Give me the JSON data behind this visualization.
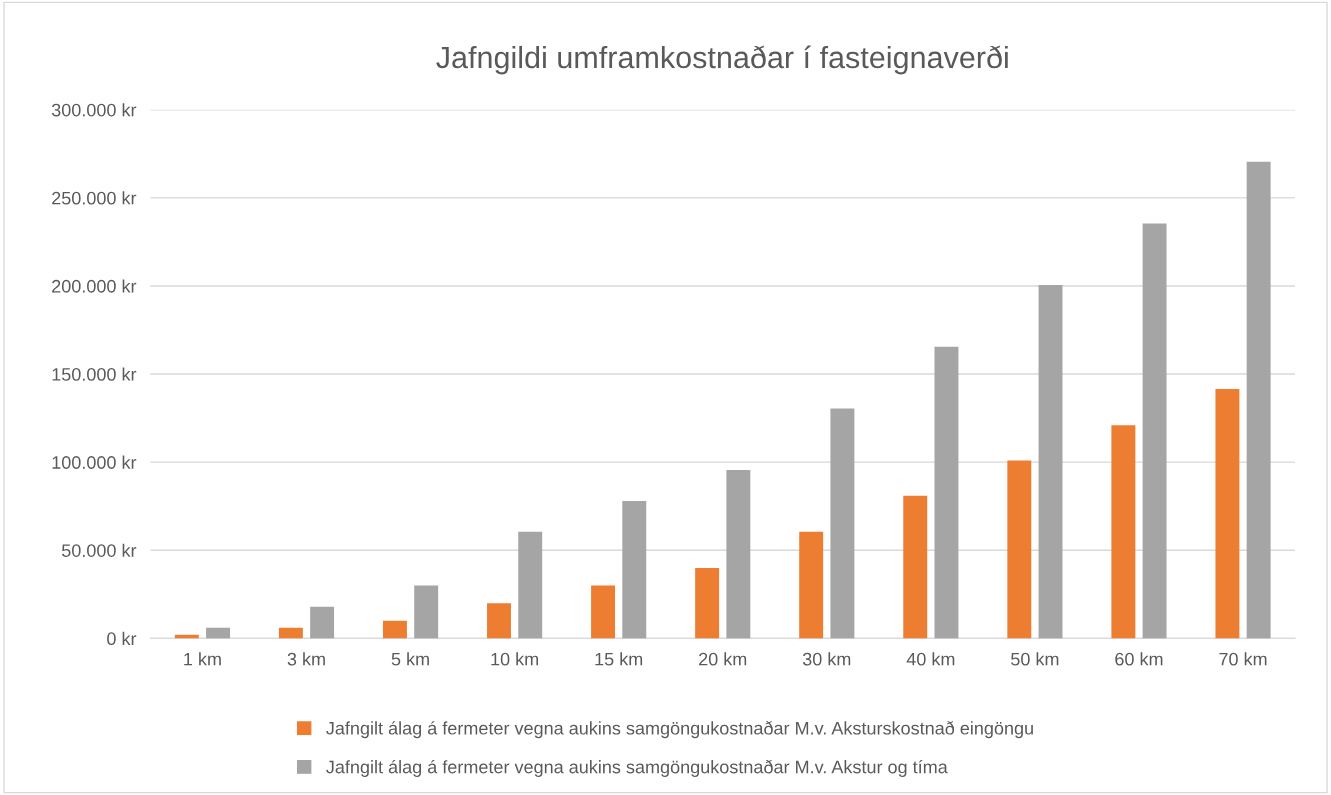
{
  "chart_data": {
    "type": "bar",
    "title": "Jafngildi umframkostnaðar í fasteignaverði",
    "categories": [
      "1 km",
      "3 km",
      "5 km",
      "10 km",
      "15 km",
      "20 km",
      "30 km",
      "40 km",
      "50 km",
      "60 km",
      "70 km"
    ],
    "series": [
      {
        "name": "Jafngilt álag á fermeter vegna aukins samgöngukostnaðar M.v. Aksturskostnað eingöngu",
        "color": "#ed7d31",
        "values": [
          2000,
          6000,
          10000,
          20000,
          30000,
          40000,
          60500,
          81000,
          101000,
          121000,
          141500
        ]
      },
      {
        "name": "Jafngilt álag á fermeter vegna aukins samgöngukostnaðar M.v. Akstur og tíma",
        "color": "#a5a5a5",
        "values": [
          6000,
          18000,
          30000,
          60500,
          78000,
          95500,
          130500,
          165500,
          200500,
          235500,
          270500
        ]
      }
    ],
    "ylim": [
      0,
      300000
    ],
    "yticks": [
      {
        "value": 0,
        "label": "0 kr"
      },
      {
        "value": 50000,
        "label": "50.000 kr"
      },
      {
        "value": 100000,
        "label": "100.000 kr"
      },
      {
        "value": 150000,
        "label": "150.000 kr"
      },
      {
        "value": 200000,
        "label": "200.000 kr"
      },
      {
        "value": 250000,
        "label": "250.000 kr"
      },
      {
        "value": 300000,
        "label": "300.000 kr"
      }
    ],
    "grid": "y",
    "legend": "bottom"
  }
}
